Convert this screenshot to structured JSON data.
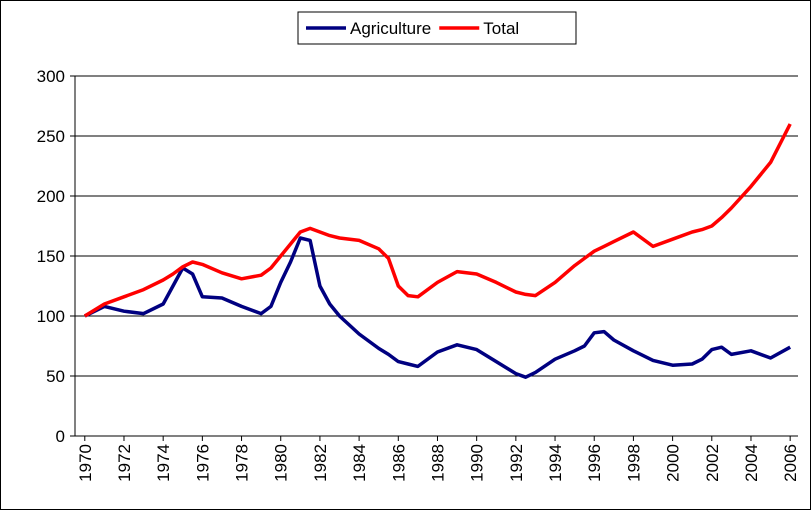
{
  "chart_data": {
    "type": "line",
    "x": [
      1970,
      1971,
      1972,
      1973,
      1974,
      1974.5,
      1975,
      1975.5,
      1976,
      1977,
      1978,
      1979,
      1979.5,
      1980,
      1980.5,
      1981,
      1981.5,
      1982,
      1982.5,
      1983,
      1984,
      1985,
      1985.5,
      1986,
      1986.5,
      1987,
      1988,
      1989,
      1990,
      1991,
      1992,
      1992.5,
      1993,
      1994,
      1995,
      1995.5,
      1996,
      1996.5,
      1997,
      1998,
      1999,
      2000,
      2001,
      2001.5,
      2002,
      2002.5,
      2003,
      2004,
      2005,
      2006
    ],
    "series": [
      {
        "name": "Agriculture",
        "color": "#000080",
        "values": [
          100,
          108,
          104,
          102,
          110,
          125,
          140,
          135,
          116,
          115,
          108,
          102,
          108,
          128,
          145,
          165,
          163,
          125,
          110,
          100,
          85,
          73,
          68,
          62,
          60,
          58,
          70,
          76,
          72,
          62,
          52,
          49,
          53,
          64,
          71,
          75,
          86,
          87,
          80,
          71,
          63,
          59,
          60,
          64,
          72,
          74,
          68,
          71,
          65,
          74
        ]
      },
      {
        "name": "Total",
        "color": "#ff0000",
        "values": [
          100,
          110,
          116,
          122,
          130,
          135,
          141,
          145,
          143,
          136,
          131,
          134,
          140,
          150,
          160,
          170,
          173,
          170,
          167,
          165,
          163,
          156,
          148,
          125,
          117,
          116,
          128,
          137,
          135,
          128,
          120,
          118,
          117,
          128,
          142,
          148,
          154,
          158,
          162,
          170,
          158,
          164,
          170,
          172,
          175,
          182,
          190,
          208,
          228,
          260
        ]
      }
    ],
    "xlim": [
      1969.5,
      2006.4
    ],
    "xticks": [
      1970,
      1972,
      1974,
      1976,
      1978,
      1980,
      1982,
      1984,
      1986,
      1988,
      1990,
      1992,
      1994,
      1996,
      1998,
      2000,
      2002,
      2004,
      2006
    ],
    "ylim": [
      0,
      300
    ],
    "yticks": [
      0,
      50,
      100,
      150,
      200,
      250,
      300
    ],
    "grid": true,
    "legend": "top"
  }
}
